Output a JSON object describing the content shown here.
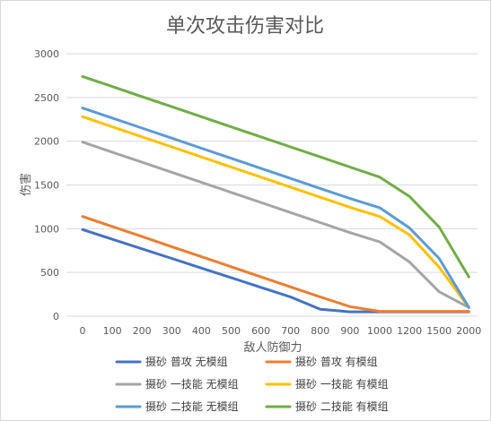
{
  "chart_data": {
    "type": "line",
    "title": "单次攻击伤害对比",
    "xlabel": "敌人防御力",
    "ylabel": "伤害",
    "x": [
      0,
      100,
      200,
      300,
      400,
      500,
      600,
      700,
      800,
      900,
      1000,
      1200,
      1500,
      2000
    ],
    "x_tick_labels": [
      "0",
      "100",
      "200",
      "300",
      "400",
      "500",
      "600",
      "700",
      "800",
      "900",
      "1000",
      "1200",
      "1500",
      "2000"
    ],
    "ylim": [
      0,
      3000
    ],
    "y_ticks": [
      0,
      500,
      1000,
      1500,
      2000,
      2500,
      3000
    ],
    "grid": "horizontal",
    "legend_position": "bottom",
    "series": [
      {
        "name": "摄砂 普攻 无模组",
        "color": "#4472C4",
        "values": [
          990,
          880,
          770,
          660,
          550,
          440,
          330,
          220,
          80,
          50,
          50,
          50,
          50,
          50
        ]
      },
      {
        "name": "摄砂 普攻 有模组",
        "color": "#ED7D31",
        "values": [
          1140,
          1025,
          910,
          795,
          680,
          565,
          450,
          335,
          220,
          110,
          55,
          55,
          55,
          55
        ]
      },
      {
        "name": "摄砂 一技能 无模组",
        "color": "#A5A5A5",
        "values": [
          1990,
          1875,
          1760,
          1645,
          1530,
          1415,
          1300,
          1185,
          1070,
          955,
          850,
          620,
          280,
          100
        ]
      },
      {
        "name": "摄砂 一技能 有模组",
        "color": "#FFC000",
        "values": [
          2280,
          2165,
          2050,
          1935,
          1820,
          1705,
          1590,
          1475,
          1360,
          1245,
          1140,
          930,
          560,
          100
        ]
      },
      {
        "name": "摄砂 二技能 无模组",
        "color": "#5B9BD5",
        "values": [
          2380,
          2265,
          2150,
          2035,
          1920,
          1805,
          1690,
          1575,
          1460,
          1345,
          1240,
          1010,
          660,
          100
        ]
      },
      {
        "name": "摄砂 二技能 有模组",
        "color": "#70AD47",
        "values": [
          2740,
          2625,
          2510,
          2395,
          2280,
          2165,
          2050,
          1935,
          1820,
          1705,
          1590,
          1370,
          1020,
          450
        ]
      }
    ]
  }
}
